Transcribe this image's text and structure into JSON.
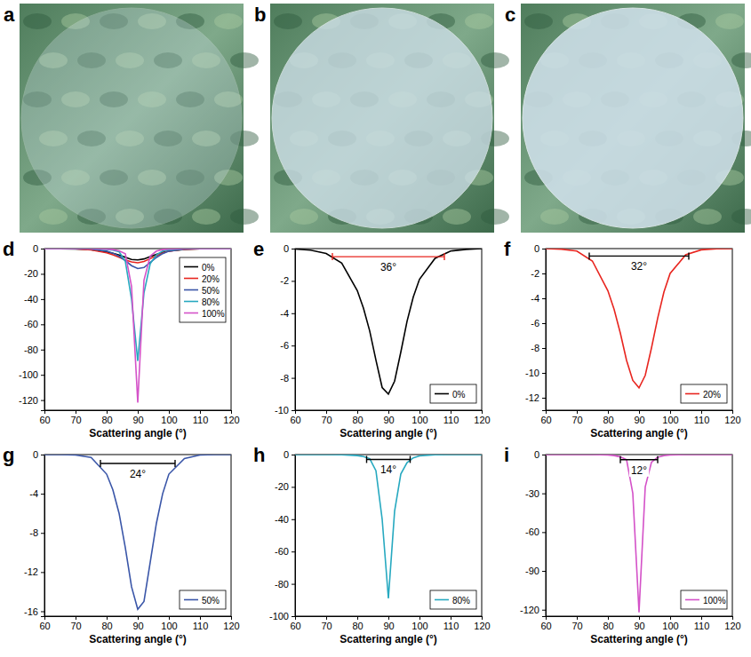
{
  "chart_data": [
    {
      "type": "image",
      "panel": "a"
    },
    {
      "type": "image",
      "panel": "b"
    },
    {
      "type": "image",
      "panel": "c"
    },
    {
      "type": "line",
      "panel": "d",
      "xlabel": "Scattering angle (°)",
      "x": [
        60,
        65,
        70,
        75,
        80,
        82,
        84,
        86,
        88,
        90,
        92,
        94,
        96,
        98,
        100,
        105,
        110,
        115,
        120
      ],
      "xlim": [
        60,
        120
      ],
      "xticks": [
        60,
        70,
        80,
        90,
        100,
        110,
        120
      ],
      "ylim": [
        -128,
        0
      ],
      "yticks": [
        0,
        -20,
        -40,
        -60,
        -80,
        -100,
        -120
      ],
      "legend": "upper right",
      "series": [
        {
          "name": "0%",
          "color": "#000000",
          "values": [
            -0.02,
            -0.1,
            -0.3,
            -0.9,
            -2.6,
            -3.7,
            -5.1,
            -6.9,
            -8.6,
            -9.0,
            -8.2,
            -6.4,
            -4.5,
            -3.0,
            -1.9,
            -0.6,
            -0.15,
            -0.05,
            0
          ]
        },
        {
          "name": "20%",
          "color": "#e8251f",
          "values": [
            0,
            -0.05,
            -0.2,
            -1.0,
            -3.4,
            -4.9,
            -6.8,
            -9.0,
            -10.6,
            -11.2,
            -10.2,
            -8.0,
            -5.6,
            -3.5,
            -2.0,
            -0.5,
            -0.1,
            -0.02,
            0
          ]
        },
        {
          "name": "50%",
          "color": "#3a56a8",
          "values": [
            0,
            0,
            -0.05,
            -0.3,
            -2.0,
            -3.6,
            -6.0,
            -9.5,
            -13.5,
            -15.8,
            -15.0,
            -11.0,
            -7.0,
            -4.0,
            -2.0,
            -0.4,
            -0.05,
            0,
            0
          ]
        },
        {
          "name": "80%",
          "color": "#27a9c0",
          "values": [
            0,
            0,
            0,
            -0.1,
            -0.6,
            -1.2,
            -2.5,
            -10,
            -40,
            -89,
            -35,
            -12,
            -5,
            -2,
            -0.8,
            -0.1,
            0,
            0,
            0
          ]
        },
        {
          "name": "100%",
          "color": "#d452c8",
          "values": [
            0,
            0,
            0,
            -0.05,
            -0.3,
            -0.8,
            -1.8,
            -4,
            -30,
            -122,
            -25,
            -6,
            -2,
            -0.8,
            -0.3,
            -0.05,
            0,
            0,
            0
          ]
        }
      ]
    },
    {
      "type": "line",
      "panel": "e",
      "xlabel": "Scattering angle (°)",
      "x": [
        60,
        65,
        70,
        75,
        80,
        82,
        84,
        86,
        88,
        90,
        92,
        94,
        96,
        98,
        100,
        105,
        110,
        115,
        120
      ],
      "xlim": [
        60,
        120
      ],
      "xticks": [
        60,
        70,
        80,
        90,
        100,
        110,
        120
      ],
      "ylim": [
        -10,
        0
      ],
      "yticks": [
        0,
        -2,
        -4,
        -6,
        -8,
        -10
      ],
      "legend": "lower right",
      "series": [
        {
          "name": "0%",
          "color": "#000000",
          "values": [
            -0.02,
            -0.1,
            -0.3,
            -0.9,
            -2.6,
            -3.7,
            -5.1,
            -6.9,
            -8.6,
            -9.0,
            -8.2,
            -6.4,
            -4.5,
            -3.0,
            -1.9,
            -0.6,
            -0.15,
            -0.05,
            0
          ]
        }
      ],
      "annotations": [
        {
          "text": "36°",
          "x": [
            72,
            108
          ],
          "y": -0.5,
          "color": "#e8251f"
        }
      ]
    },
    {
      "type": "line",
      "panel": "f",
      "xlabel": "Scattering angle (°)",
      "x": [
        60,
        65,
        70,
        75,
        80,
        82,
        84,
        86,
        88,
        90,
        92,
        94,
        96,
        98,
        100,
        105,
        110,
        115,
        120
      ],
      "xlim": [
        60,
        120
      ],
      "xticks": [
        60,
        70,
        80,
        90,
        100,
        110,
        120
      ],
      "ylim": [
        -13,
        0
      ],
      "yticks": [
        0,
        -2,
        -4,
        -6,
        -8,
        -10,
        -12
      ],
      "legend": "lower right",
      "series": [
        {
          "name": "20%",
          "color": "#e8251f",
          "values": [
            0,
            -0.05,
            -0.2,
            -1.0,
            -3.4,
            -4.9,
            -6.8,
            -9.0,
            -10.6,
            -11.2,
            -10.2,
            -8.0,
            -5.6,
            -3.5,
            -2.0,
            -0.5,
            -0.1,
            -0.02,
            0
          ]
        }
      ],
      "annotations": [
        {
          "text": "32°",
          "x": [
            74,
            106
          ],
          "y": -0.6,
          "color": "#000000"
        }
      ]
    },
    {
      "type": "line",
      "panel": "g",
      "xlabel": "Scattering angle (°)",
      "x": [
        60,
        65,
        70,
        75,
        80,
        82,
        84,
        86,
        88,
        90,
        92,
        94,
        96,
        98,
        100,
        105,
        110,
        115,
        120
      ],
      "xlim": [
        60,
        120
      ],
      "xticks": [
        60,
        70,
        80,
        90,
        100,
        110,
        120
      ],
      "ylim": [
        -16.5,
        0
      ],
      "yticks": [
        0,
        -4,
        -8,
        -12,
        -16
      ],
      "legend": "lower right",
      "series": [
        {
          "name": "50%",
          "color": "#3a56a8",
          "values": [
            0,
            0,
            -0.05,
            -0.3,
            -2.0,
            -3.6,
            -6.0,
            -9.5,
            -13.5,
            -15.8,
            -15.0,
            -11.0,
            -7.0,
            -4.0,
            -2.0,
            -0.4,
            -0.05,
            0,
            0
          ]
        }
      ],
      "annotations": [
        {
          "text": "24°",
          "x": [
            78,
            102
          ],
          "y": -0.9,
          "color": "#000000"
        }
      ]
    },
    {
      "type": "line",
      "panel": "h",
      "xlabel": "Scattering angle (°)",
      "x": [
        60,
        65,
        70,
        75,
        80,
        82,
        84,
        86,
        88,
        90,
        92,
        94,
        96,
        98,
        100,
        105,
        110,
        115,
        120
      ],
      "xlim": [
        60,
        120
      ],
      "xticks": [
        60,
        70,
        80,
        90,
        100,
        110,
        120
      ],
      "ylim": [
        -100,
        0
      ],
      "yticks": [
        0,
        -20,
        -40,
        -60,
        -80,
        -100
      ],
      "legend": "lower right",
      "series": [
        {
          "name": "80%",
          "color": "#27a9c0",
          "values": [
            0,
            0,
            0,
            -0.1,
            -0.6,
            -1.2,
            -2.5,
            -10,
            -40,
            -89,
            -35,
            -12,
            -5,
            -2,
            -0.8,
            -0.1,
            0,
            0,
            0
          ]
        }
      ],
      "annotations": [
        {
          "text": "14°",
          "x": [
            83,
            97
          ],
          "y": -3,
          "color": "#000000"
        }
      ]
    },
    {
      "type": "line",
      "panel": "i",
      "xlabel": "Scattering angle (°)",
      "x": [
        60,
        65,
        70,
        75,
        80,
        82,
        84,
        86,
        88,
        90,
        92,
        94,
        96,
        98,
        100,
        105,
        110,
        115,
        120
      ],
      "xlim": [
        60,
        120
      ],
      "xticks": [
        60,
        70,
        80,
        90,
        100,
        110,
        120
      ],
      "ylim": [
        -125,
        0
      ],
      "yticks": [
        0,
        -30,
        -60,
        -90,
        -120
      ],
      "legend": "lower right",
      "series": [
        {
          "name": "100%",
          "color": "#d452c8",
          "values": [
            0,
            0,
            0,
            -0.05,
            -0.3,
            -0.8,
            -1.8,
            -4,
            -30,
            -122,
            -25,
            -6,
            -2,
            -0.8,
            -0.3,
            -0.05,
            0,
            0,
            0
          ]
        }
      ],
      "annotations": [
        {
          "text": "12°",
          "x": [
            84,
            96
          ],
          "y": -4,
          "color": "#000000"
        }
      ]
    }
  ]
}
